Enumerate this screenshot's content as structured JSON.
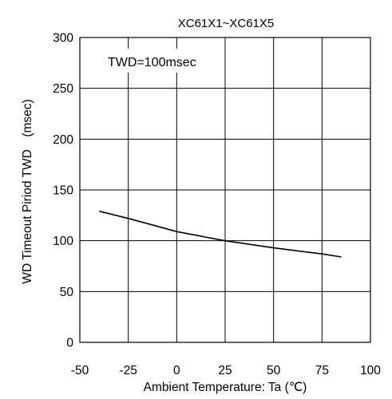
{
  "chart_data": {
    "type": "line",
    "title": "XC61X1~XC61X5",
    "xlabel": "Ambient Temperature: Ta (℃)",
    "ylabel": "WD Timeout Piriod TWD　(msec)",
    "annotation": "TWD=100msec",
    "xlim": [
      -50,
      100
    ],
    "ylim": [
      0,
      300
    ],
    "xticks": [
      -50,
      -25,
      0,
      25,
      50,
      75,
      100
    ],
    "yticks": [
      0,
      50,
      100,
      150,
      200,
      250,
      300
    ],
    "grid": true,
    "series": [
      {
        "x": [
          -40,
          -25,
          0,
          25,
          50,
          75,
          85
        ],
        "y": [
          129,
          122,
          109,
          100,
          93,
          87,
          84
        ]
      }
    ],
    "colors": {
      "line": "#000000",
      "grid": "#000000",
      "background": "#ffffff"
    }
  }
}
